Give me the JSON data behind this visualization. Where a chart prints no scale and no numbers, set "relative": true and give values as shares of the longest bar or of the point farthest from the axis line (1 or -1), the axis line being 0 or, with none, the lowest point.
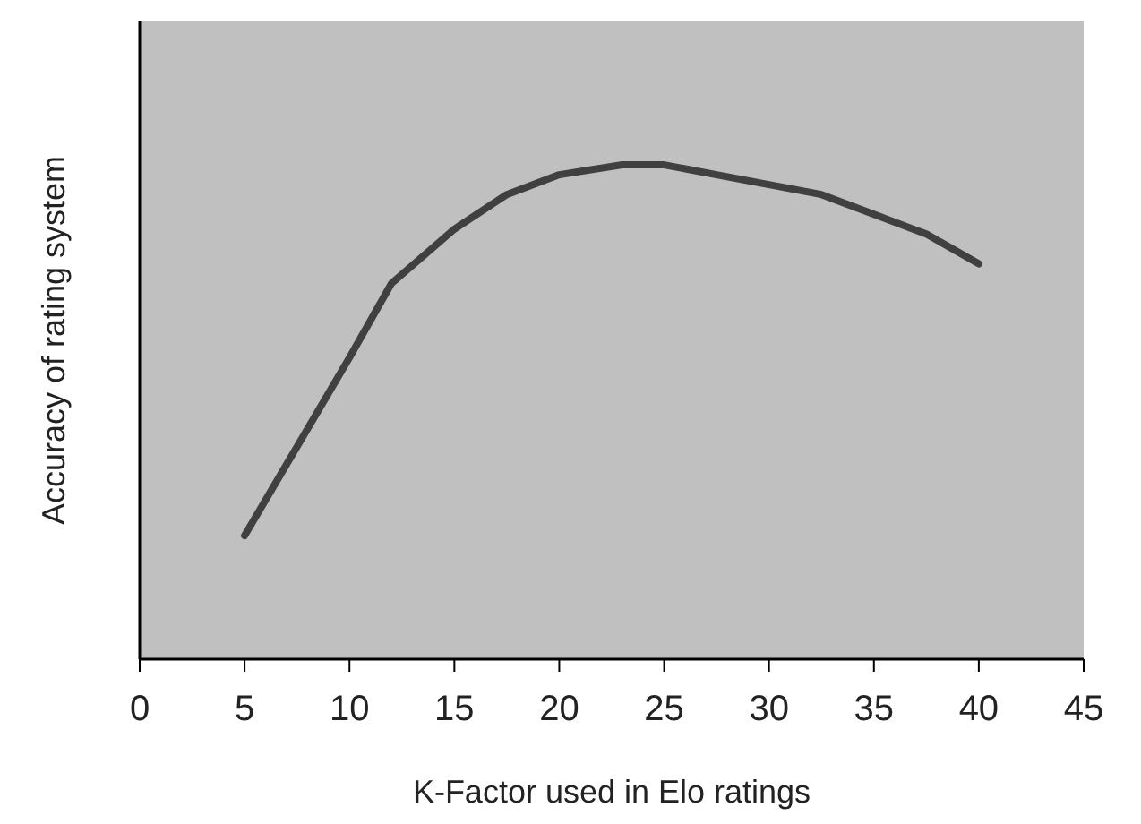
{
  "chart_data": {
    "type": "line",
    "xlabel": "K-Factor used in Elo ratings",
    "ylabel": "Accuracy of rating system",
    "relative": true,
    "x": [
      5,
      7.5,
      10,
      12,
      15,
      17.5,
      20,
      23,
      25,
      27.5,
      30,
      32.5,
      35,
      37.5,
      40
    ],
    "series": [
      {
        "color": "#404040",
        "values": [
          0.25,
          0.43,
          0.61,
          0.76,
          0.87,
          0.94,
          0.98,
          1,
          1,
          0.98,
          0.96,
          0.94,
          0.9,
          0.86,
          0.8
        ]
      }
    ],
    "xlim": [
      0,
      45
    ],
    "xticks": [
      0,
      5,
      10,
      15,
      20,
      25,
      30,
      35,
      40,
      45
    ],
    "grid": false,
    "marker": "none",
    "line_style": "solid"
  }
}
